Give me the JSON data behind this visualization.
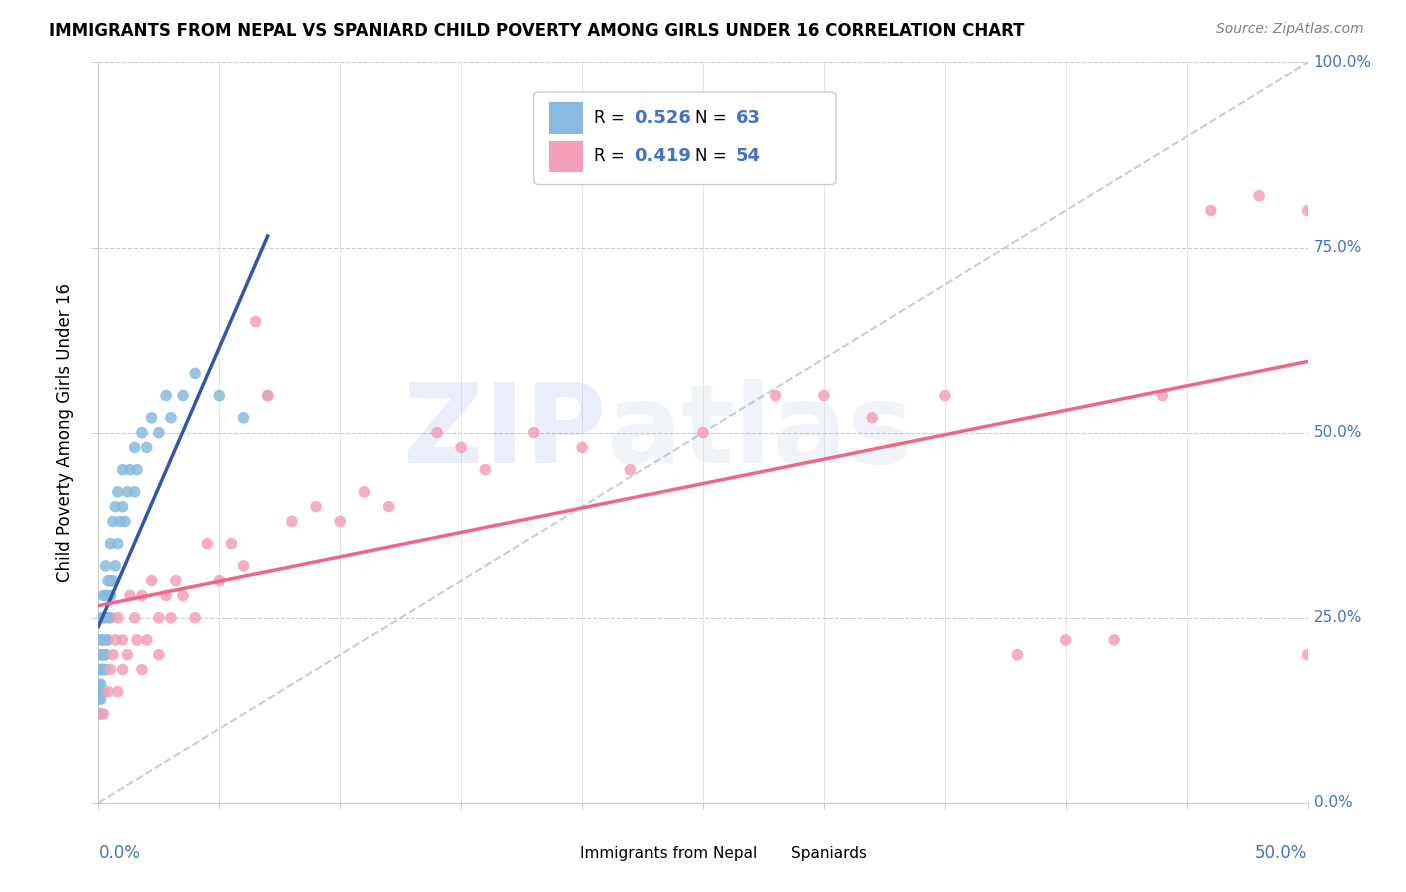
{
  "title": "IMMIGRANTS FROM NEPAL VS SPANIARD CHILD POVERTY AMONG GIRLS UNDER 16 CORRELATION CHART",
  "source": "Source: ZipAtlas.com",
  "ylabel": "Child Poverty Among Girls Under 16",
  "ytick_labels": [
    "0.0%",
    "25.0%",
    "50.0%",
    "75.0%",
    "100.0%"
  ],
  "nepal_color": "#88bbdd",
  "spaniard_color": "#f4a0b8",
  "nepal_line_color": "#3355aa",
  "spaniard_line_color": "#ee6688",
  "background_color": "#ffffff",
  "xlim": [
    0.0,
    0.5
  ],
  "ylim": [
    0.0,
    1.0
  ],
  "nepal_R": 0.526,
  "nepal_N": 63,
  "spaniard_R": 0.419,
  "spaniard_N": 54,
  "nepal_scatter_x": [
    0.0,
    0.0,
    0.0,
    0.0,
    0.0,
    0.0,
    0.001,
    0.001,
    0.001,
    0.001,
    0.001,
    0.001,
    0.001,
    0.001,
    0.001,
    0.001,
    0.002,
    0.002,
    0.002,
    0.002,
    0.002,
    0.002,
    0.002,
    0.003,
    0.003,
    0.003,
    0.003,
    0.003,
    0.003,
    0.004,
    0.004,
    0.004,
    0.004,
    0.005,
    0.005,
    0.005,
    0.005,
    0.006,
    0.006,
    0.007,
    0.007,
    0.008,
    0.008,
    0.009,
    0.01,
    0.01,
    0.011,
    0.012,
    0.013,
    0.015,
    0.015,
    0.016,
    0.018,
    0.02,
    0.022,
    0.025,
    0.028,
    0.03,
    0.035,
    0.04,
    0.05,
    0.06,
    0.07
  ],
  "nepal_scatter_y": [
    0.15,
    0.18,
    0.12,
    0.2,
    0.14,
    0.16,
    0.15,
    0.18,
    0.2,
    0.22,
    0.25,
    0.16,
    0.12,
    0.18,
    0.22,
    0.14,
    0.2,
    0.22,
    0.18,
    0.25,
    0.15,
    0.2,
    0.28,
    0.22,
    0.25,
    0.18,
    0.28,
    0.2,
    0.32,
    0.22,
    0.3,
    0.25,
    0.28,
    0.25,
    0.3,
    0.35,
    0.28,
    0.3,
    0.38,
    0.32,
    0.4,
    0.35,
    0.42,
    0.38,
    0.4,
    0.45,
    0.38,
    0.42,
    0.45,
    0.42,
    0.48,
    0.45,
    0.5,
    0.48,
    0.52,
    0.5,
    0.55,
    0.52,
    0.55,
    0.58,
    0.55,
    0.52,
    0.55
  ],
  "spaniard_scatter_x": [
    0.002,
    0.004,
    0.005,
    0.006,
    0.007,
    0.008,
    0.008,
    0.01,
    0.01,
    0.012,
    0.013,
    0.015,
    0.016,
    0.018,
    0.018,
    0.02,
    0.022,
    0.025,
    0.025,
    0.028,
    0.03,
    0.032,
    0.035,
    0.04,
    0.045,
    0.05,
    0.055,
    0.06,
    0.065,
    0.07,
    0.08,
    0.09,
    0.1,
    0.11,
    0.12,
    0.14,
    0.15,
    0.16,
    0.18,
    0.2,
    0.22,
    0.25,
    0.28,
    0.3,
    0.32,
    0.35,
    0.38,
    0.4,
    0.42,
    0.44,
    0.46,
    0.48,
    0.5,
    0.5
  ],
  "spaniard_scatter_y": [
    0.12,
    0.15,
    0.18,
    0.2,
    0.22,
    0.15,
    0.25,
    0.18,
    0.22,
    0.2,
    0.28,
    0.25,
    0.22,
    0.28,
    0.18,
    0.22,
    0.3,
    0.25,
    0.2,
    0.28,
    0.25,
    0.3,
    0.28,
    0.25,
    0.35,
    0.3,
    0.35,
    0.32,
    0.65,
    0.55,
    0.38,
    0.4,
    0.38,
    0.42,
    0.4,
    0.5,
    0.48,
    0.45,
    0.5,
    0.48,
    0.45,
    0.5,
    0.55,
    0.55,
    0.52,
    0.55,
    0.2,
    0.22,
    0.22,
    0.55,
    0.8,
    0.82,
    0.8,
    0.2
  ]
}
